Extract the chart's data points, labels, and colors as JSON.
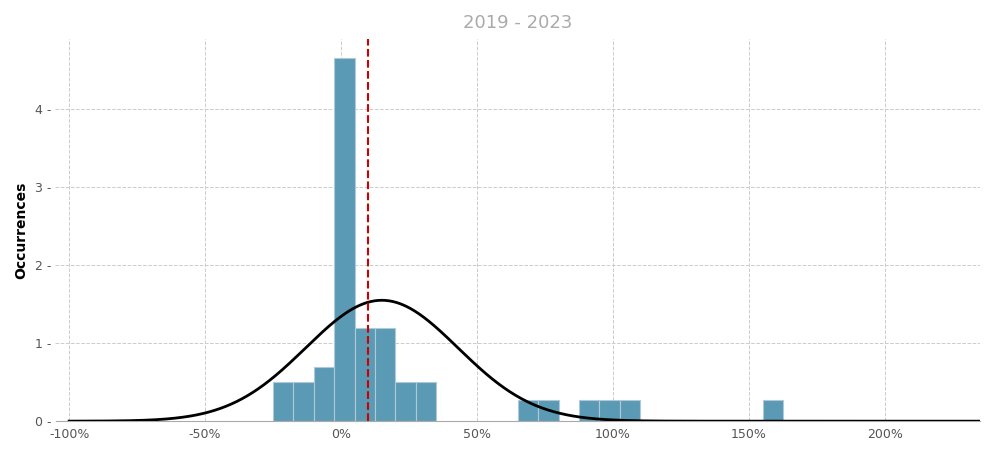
{
  "title": "2019 - 2023",
  "title_color": "#aaaaaa",
  "ylabel": "Occurrences",
  "bar_color": "#5b9ab5",
  "bar_edgecolor": "#b0c8d8",
  "kde_color": "#000000",
  "vline_color": "#cc0000",
  "vline_x": 0.1,
  "background_color": "#ffffff",
  "grid_color": "#cccccc",
  "xlim": [
    -1.05,
    2.35
  ],
  "ylim": [
    0,
    4.9
  ],
  "yticks": [
    0,
    1,
    2,
    3,
    4
  ],
  "xticks": [
    -1.0,
    -0.5,
    0.0,
    0.5,
    1.0,
    1.5,
    2.0
  ],
  "xticklabels": [
    "-100%",
    "-50%",
    "0%",
    "50%",
    "100%",
    "150%",
    "200%"
  ],
  "bar_lefts": [
    -0.25,
    -0.175,
    -0.1,
    -0.025,
    0.05,
    0.125,
    0.2,
    0.275,
    0.65,
    0.725,
    0.875,
    0.95,
    1.025,
    1.55
  ],
  "bar_widths": [
    0.075,
    0.075,
    0.075,
    0.075,
    0.075,
    0.075,
    0.075,
    0.075,
    0.075,
    0.075,
    0.075,
    0.075,
    0.075,
    0.075
  ],
  "bar_heights": [
    0.5,
    0.5,
    0.7,
    4.65,
    1.2,
    1.2,
    0.5,
    0.5,
    0.27,
    0.27,
    0.27,
    0.27,
    0.27,
    0.27
  ],
  "kde_mean": 0.15,
  "kde_std": 0.28,
  "kde_peak": 1.55
}
